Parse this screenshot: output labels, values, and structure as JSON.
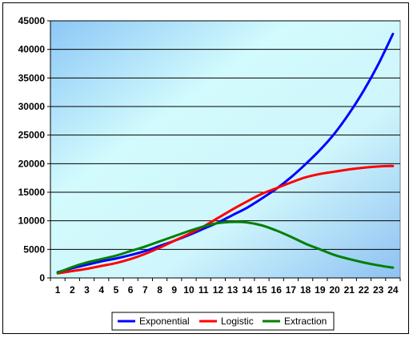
{
  "chart_data": {
    "type": "line",
    "title": "",
    "xlabel": "",
    "ylabel": "",
    "categories": [
      "1",
      "2",
      "3",
      "4",
      "5",
      "6",
      "7",
      "8",
      "9",
      "10",
      "11",
      "12",
      "13",
      "14",
      "15",
      "16",
      "17",
      "18",
      "19",
      "20",
      "21",
      "22",
      "23",
      "24"
    ],
    "ylim": [
      0,
      45000
    ],
    "yticks": [
      0,
      5000,
      10000,
      15000,
      20000,
      25000,
      30000,
      35000,
      40000,
      45000
    ],
    "grid": "horizontal",
    "legend_position": "bottom",
    "background": "gradient light cyan to blue",
    "series": [
      {
        "name": "Exponential",
        "color": "#0000ff",
        "values": [
          1000,
          1700,
          2300,
          2900,
          3400,
          4000,
          4700,
          5600,
          6500,
          7500,
          8600,
          9700,
          11000,
          12300,
          13900,
          15600,
          17600,
          19900,
          22400,
          25300,
          28800,
          32800,
          37400,
          42700
        ]
      },
      {
        "name": "Logistic",
        "color": "#ff0000",
        "values": [
          800,
          1200,
          1600,
          2100,
          2600,
          3300,
          4200,
          5300,
          6500,
          7700,
          9000,
          10500,
          12000,
          13400,
          14700,
          15700,
          16700,
          17600,
          18200,
          18600,
          19000,
          19300,
          19500,
          19600
        ]
      },
      {
        "name": "Extraction",
        "color": "#008000",
        "values": [
          900,
          1900,
          2700,
          3300,
          3900,
          4700,
          5500,
          6400,
          7300,
          8200,
          9000,
          9600,
          9800,
          9700,
          9200,
          8300,
          7200,
          6000,
          5000,
          4000,
          3300,
          2700,
          2200,
          1800
        ]
      }
    ]
  }
}
